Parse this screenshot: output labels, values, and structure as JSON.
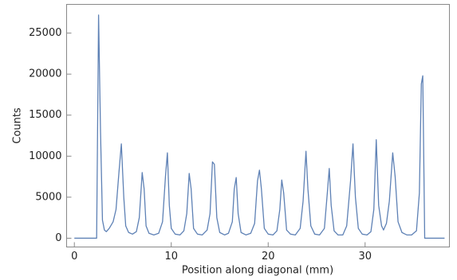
{
  "chart_data": {
    "type": "line",
    "xlabel": "Position along diagonal (mm)",
    "ylabel": "Counts",
    "x": [
      0,
      2.3,
      2.5,
      2.7,
      2.9,
      3.1,
      3.3,
      3.6,
      4.0,
      4.3,
      4.6,
      4.85,
      5.1,
      5.3,
      5.6,
      6.0,
      6.4,
      6.7,
      7.0,
      7.2,
      7.4,
      7.7,
      8.2,
      8.7,
      9.1,
      9.4,
      9.6,
      9.8,
      10.0,
      10.4,
      10.9,
      11.3,
      11.6,
      11.85,
      12.05,
      12.3,
      12.7,
      13.2,
      13.7,
      14.0,
      14.25,
      14.45,
      14.7,
      15.0,
      15.5,
      15.9,
      16.3,
      16.5,
      16.7,
      16.9,
      17.2,
      17.7,
      18.2,
      18.6,
      18.9,
      19.1,
      19.3,
      19.6,
      20.0,
      20.5,
      20.9,
      21.2,
      21.4,
      21.6,
      21.9,
      22.3,
      22.8,
      23.3,
      23.6,
      23.9,
      24.1,
      24.4,
      24.8,
      25.3,
      25.8,
      26.1,
      26.3,
      26.5,
      26.8,
      27.2,
      27.7,
      28.1,
      28.5,
      28.75,
      29.0,
      29.3,
      29.7,
      30.2,
      30.6,
      30.9,
      31.15,
      31.4,
      31.7,
      31.9,
      32.2,
      32.5,
      32.85,
      33.1,
      33.4,
      33.8,
      34.3,
      34.8,
      35.3,
      35.6,
      35.8,
      35.95,
      36.15,
      38.2
    ],
    "series": [
      {
        "color": "#5e81b5",
        "values": [
          0,
          0,
          27200,
          13000,
          2200,
          1000,
          800,
          1200,
          2000,
          3500,
          8000,
          11500,
          5000,
          1500,
          700,
          500,
          800,
          2500,
          8000,
          6000,
          1500,
          600,
          400,
          600,
          2000,
          7500,
          10400,
          4000,
          1200,
          500,
          400,
          900,
          3000,
          7900,
          6000,
          1200,
          500,
          400,
          1000,
          3000,
          9300,
          9000,
          2500,
          700,
          400,
          600,
          2000,
          6000,
          7400,
          3000,
          700,
          400,
          600,
          1800,
          7000,
          8300,
          6000,
          1200,
          500,
          400,
          900,
          3500,
          7100,
          5500,
          1000,
          500,
          400,
          1200,
          4500,
          10600,
          6000,
          1500,
          500,
          400,
          1200,
          5500,
          8500,
          4000,
          900,
          400,
          400,
          1500,
          7000,
          11500,
          5000,
          1200,
          500,
          400,
          800,
          3500,
          12000,
          4000,
          1500,
          1000,
          1800,
          4500,
          10400,
          7500,
          2000,
          700,
          400,
          400,
          900,
          5500,
          18800,
          19800,
          0,
          0
        ]
      }
    ],
    "xlim": [
      -0.8,
      38.7
    ],
    "ylim": [
      -1070,
      28500
    ],
    "xticks": [
      0,
      10,
      20,
      30
    ],
    "yticks": [
      0,
      5000,
      10000,
      15000,
      20000,
      25000
    ]
  }
}
